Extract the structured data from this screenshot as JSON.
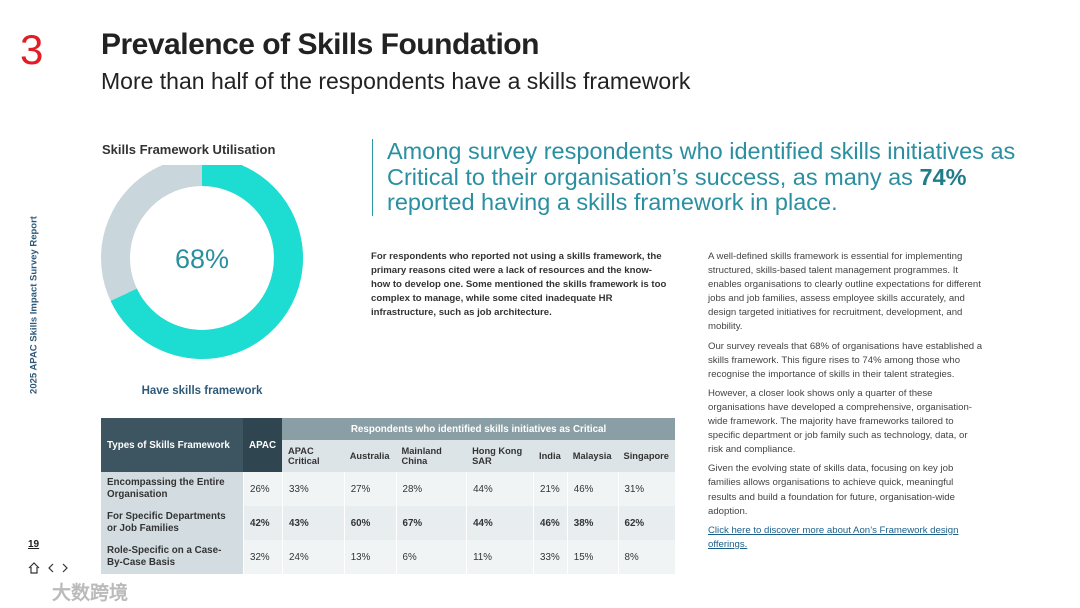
{
  "section_number": "3",
  "title": "Prevalence of Skills Foundation",
  "subtitle": "More than half of the respondents have a skills framework",
  "side_label": "2025 APAC Skills Impact Survey Report",
  "page_number": "19",
  "watermark": "大数跨境",
  "chart_data": {
    "type": "donut",
    "title": "Skills Framework Utilisation",
    "categories": [
      "Have skills framework"
    ],
    "values": [
      68
    ],
    "value_labels": [
      "68%"
    ],
    "color": "#1ddcd2",
    "background_color": "#c9d6db"
  },
  "quote": {
    "before": "Among survey respondents who identified skills initiatives as Critical to their organisation’s success, as many as ",
    "highlight": "74%",
    "after": " reported having a skills framework in place."
  },
  "bold_paragraph": "For respondents who reported not using a skills framework, the primary reasons cited were a lack of resources and the know-how to develop one. Some mentioned the skills framework is too complex to manage, while some cited inadequate HR infrastructure, such as job architecture.",
  "body_paragraphs": [
    "A well-defined skills framework is essential for implementing structured, skills-based talent management programmes. It enables organisations to clearly outline expectations for different jobs and job families, assess employee skills accurately, and design targeted initiatives for recruitment, development, and mobility.",
    "Our survey reveals that 68% of organisations have established a skills framework. This figure rises to 74% among those who recognise the importance of skills in their talent strategies.",
    "However, a closer look shows only a quarter of these organisations have developed a comprehensive, organisation-wide framework. The majority have frameworks tailored to specific department or job family such as technology, data, or risk and compliance.",
    "Given the evolving state of skills data, focusing on key job families allows organisations to achieve quick, meaningful results and build a foundation for future, organisation-wide adoption."
  ],
  "link": "Click here to discover more about Aon’s Framework design offerings.",
  "table": {
    "row_header": "Types of Skills Framework",
    "apac_header": "APAC",
    "group_header": "Respondents who identified skills initiatives as Critical",
    "columns": [
      "APAC Critical",
      "Australia",
      "Mainland China",
      "Hong Kong SAR",
      "India",
      "Malaysia",
      "Singapore"
    ],
    "rows": [
      {
        "label": "Encompassing the Entire Organisation",
        "apac": "26%",
        "cells": [
          "33%",
          "27%",
          "28%",
          "44%",
          "21%",
          "46%",
          "31%"
        ]
      },
      {
        "label": "For Specific Departments or Job Families",
        "apac": "42%",
        "cells": [
          "43%",
          "60%",
          "67%",
          "44%",
          "46%",
          "38%",
          "62%"
        ]
      },
      {
        "label": "Role-Specific on a Case-By-Case Basis",
        "apac": "32%",
        "cells": [
          "24%",
          "13%",
          "6%",
          "11%",
          "33%",
          "15%",
          "8%"
        ]
      }
    ]
  }
}
